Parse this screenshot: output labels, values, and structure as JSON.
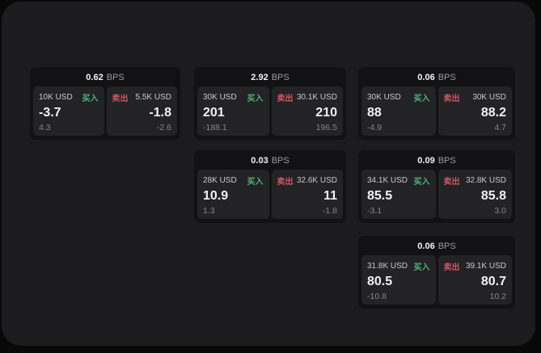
{
  "colors": {
    "page_bg": "#080808",
    "surface_bg": "#1c1c1e",
    "card_bg": "#121214",
    "panel_bg": "#232326",
    "buy_green": "#4bb576",
    "sell_red": "#d25465",
    "value_white": "#f2f2f3",
    "label_gray": "#c9c9cb",
    "muted_gray": "#86868a",
    "bps_gray": "#9c9c9f"
  },
  "cards": [
    {
      "bps": "0.62",
      "bps_unit": "BPS",
      "buy": {
        "amount": "10K USD",
        "label": "买入",
        "value": "-3.7",
        "sub": "4.3"
      },
      "sell": {
        "label": "卖出",
        "amount": "5.5K USD",
        "value": "-1.8",
        "sub": "-2.6"
      }
    },
    {
      "bps": "2.92",
      "bps_unit": "BPS",
      "buy": {
        "amount": "30K USD",
        "label": "买入",
        "value": "201",
        "sub": "-188.1"
      },
      "sell": {
        "label": "卖出",
        "amount": "30.1K USD",
        "value": "210",
        "sub": "196.5"
      }
    },
    {
      "bps": "0.06",
      "bps_unit": "BPS",
      "buy": {
        "amount": "30K USD",
        "label": "买入",
        "value": "88",
        "sub": "-4.9"
      },
      "sell": {
        "label": "卖出",
        "amount": "30K USD",
        "value": "88.2",
        "sub": "4.7"
      }
    },
    {
      "bps": "0.03",
      "bps_unit": "BPS",
      "buy": {
        "amount": "28K USD",
        "label": "买入",
        "value": "10.9",
        "sub": "1.3"
      },
      "sell": {
        "label": "卖出",
        "amount": "32.6K USD",
        "value": "11",
        "sub": "-1.8"
      }
    },
    {
      "bps": "0.09",
      "bps_unit": "BPS",
      "buy": {
        "amount": "34.1K USD",
        "label": "买入",
        "value": "85.5",
        "sub": "-3.1"
      },
      "sell": {
        "label": "卖出",
        "amount": "32.8K USD",
        "value": "85.8",
        "sub": "3.0"
      }
    },
    {
      "bps": "0.06",
      "bps_unit": "BPS",
      "buy": {
        "amount": "31.8K USD",
        "label": "买入",
        "value": "80.5",
        "sub": "-10.8"
      },
      "sell": {
        "label": "卖出",
        "amount": "39.1K USD",
        "value": "80.7",
        "sub": "10.2"
      }
    }
  ]
}
